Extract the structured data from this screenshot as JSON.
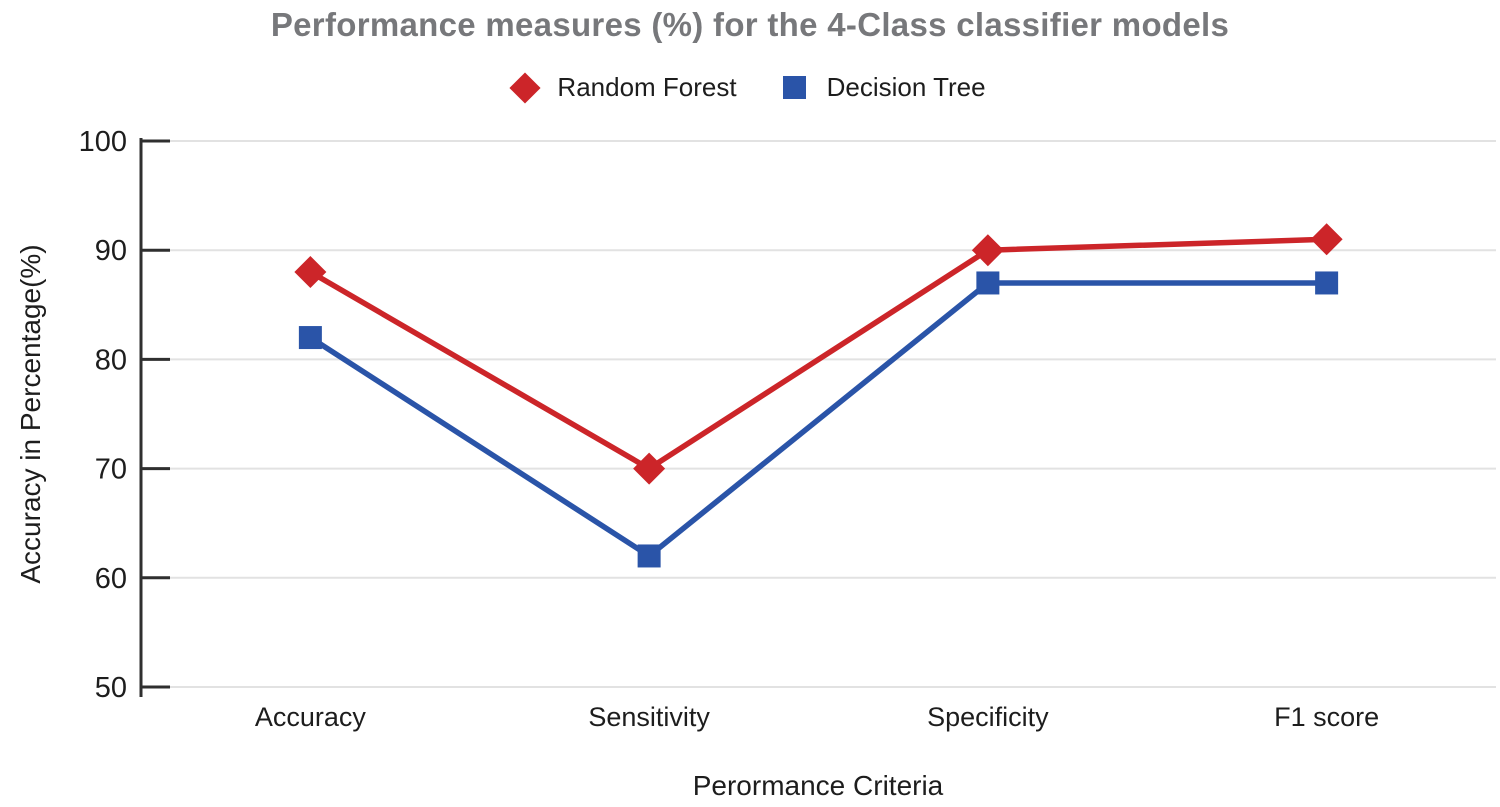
{
  "title": "Performance measures (%) for the 4-Class classifier models",
  "legend": [
    {
      "label": "Random Forest",
      "marker": "diamond",
      "color": "#cc2529"
    },
    {
      "label": "Decision Tree",
      "marker": "square",
      "color": "#2a54a8"
    }
  ],
  "chart_data": {
    "type": "line",
    "title": "Performance measures (%) for the 4-Class classifier models",
    "categories": [
      "Accuracy",
      "Sensitivity",
      "Specificity",
      "F1 score"
    ],
    "series": [
      {
        "name": "Random Forest",
        "values": [
          88,
          70,
          90,
          91
        ],
        "color": "#cc2529",
        "marker": "diamond"
      },
      {
        "name": "Decision Tree",
        "values": [
          82,
          62,
          87,
          87
        ],
        "color": "#2a54a8",
        "marker": "square"
      }
    ],
    "xlabel": "Perormance Criteria",
    "ylabel": "Accuracy in Percentage(%)",
    "ylim": [
      50,
      100
    ],
    "ytick_step": 10,
    "yticks": [
      50,
      60,
      70,
      80,
      90,
      100
    ],
    "grid": true,
    "legend_position": "top",
    "colors": {
      "title_text": "#77787b",
      "axis_text": "#1d1d1d",
      "axis_line": "#2f2f2f",
      "gridline": "#e2e2e2",
      "background": "#ffffff"
    }
  }
}
